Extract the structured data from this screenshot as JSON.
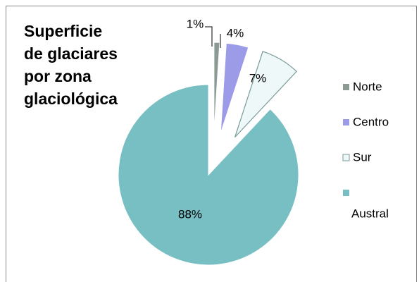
{
  "chart_data": {
    "type": "pie",
    "title": "Superficie de glaciares por zona glaciológica",
    "categories": [
      "Norte",
      "Centro",
      "Sur",
      "Austral"
    ],
    "values": [
      1,
      4,
      7,
      88
    ],
    "value_labels": [
      "1%",
      "4%",
      "7%",
      "88%"
    ],
    "colors": [
      "#8c9a94",
      "#9b9be8",
      "#eef8f8",
      "#78bfc4"
    ],
    "legend": "right"
  }
}
